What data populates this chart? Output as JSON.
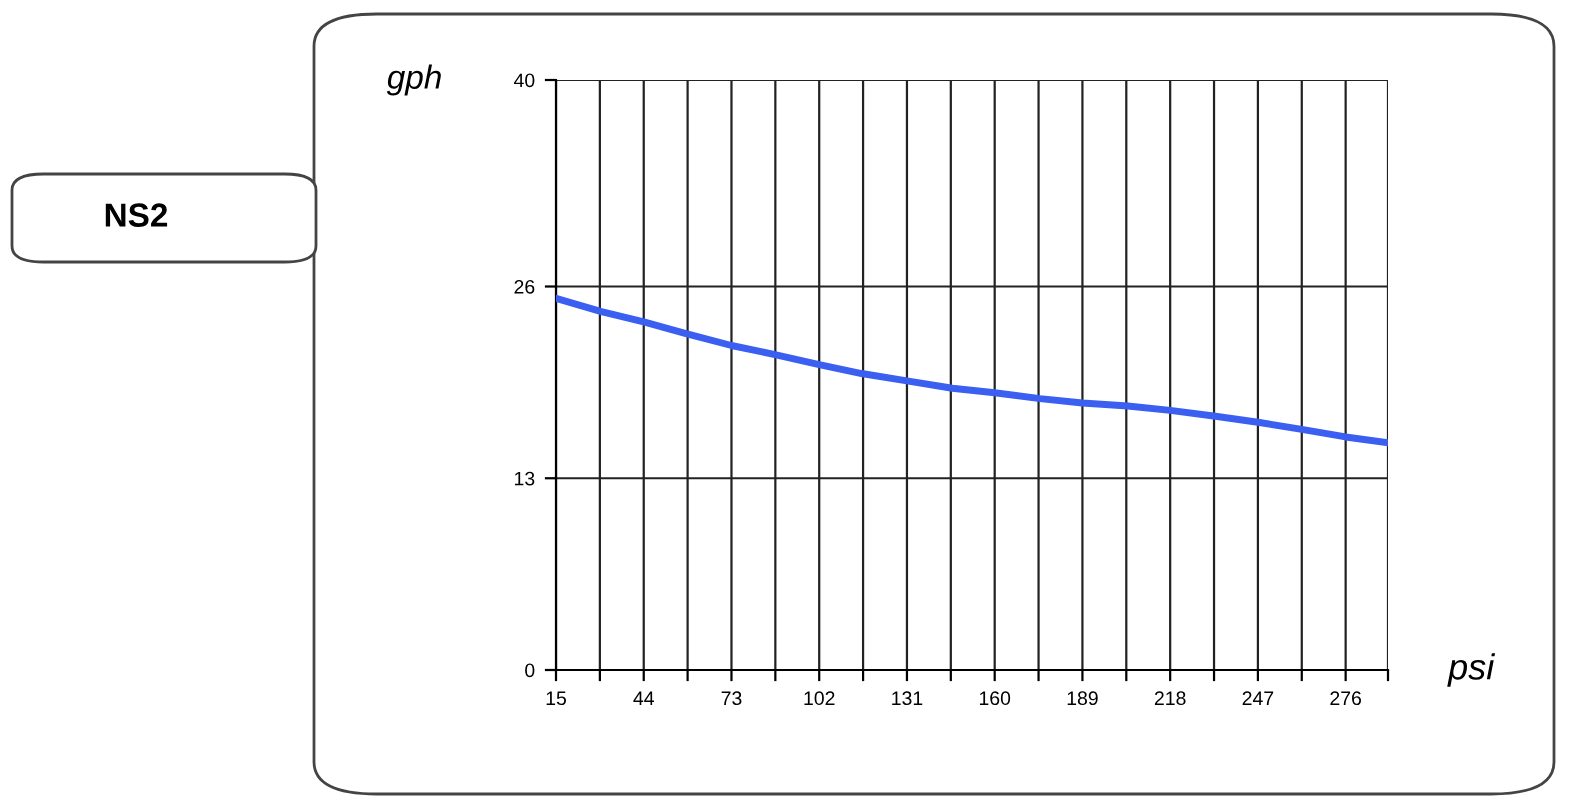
{
  "chart_data": {
    "type": "line",
    "title": "NS2",
    "xlabel": "psi",
    "ylabel": "gph",
    "x": [
      15,
      30,
      44,
      58,
      73,
      87,
      102,
      116,
      131,
      146,
      160,
      175,
      189,
      204,
      218,
      233,
      247,
      262,
      276,
      290
    ],
    "series": [
      {
        "color": "#3b5ff0",
        "values": [
          25.2,
          24.3,
          23.6,
          22.8,
          22.0,
          21.4,
          20.7,
          20.1,
          19.6,
          19.1,
          18.8,
          18.4,
          18.1,
          17.9,
          17.6,
          17.2,
          16.8,
          16.3,
          15.8,
          15.4
        ]
      }
    ],
    "xlim": [
      15,
      290
    ],
    "ylim": [
      0,
      40
    ],
    "xticks": [
      15,
      {
        "value": 29.5,
        "label": null
      },
      44,
      {
        "value": 58.5,
        "label": null
      },
      73,
      {
        "value": 87.5,
        "label": null
      },
      102,
      {
        "value": 116.5,
        "label": null
      },
      131,
      {
        "value": 145.5,
        "label": null
      },
      160,
      {
        "value": 174.5,
        "label": null
      },
      189,
      {
        "value": 203.5,
        "label": null
      },
      218,
      {
        "value": 232.5,
        "label": null
      },
      247,
      {
        "value": 261.5,
        "label": null
      },
      276,
      {
        "value": 290,
        "label": null
      }
    ],
    "yticks": [
      0,
      13,
      26,
      40
    ],
    "grid": true,
    "legend": false,
    "marker": "none",
    "line_style": "solid"
  }
}
